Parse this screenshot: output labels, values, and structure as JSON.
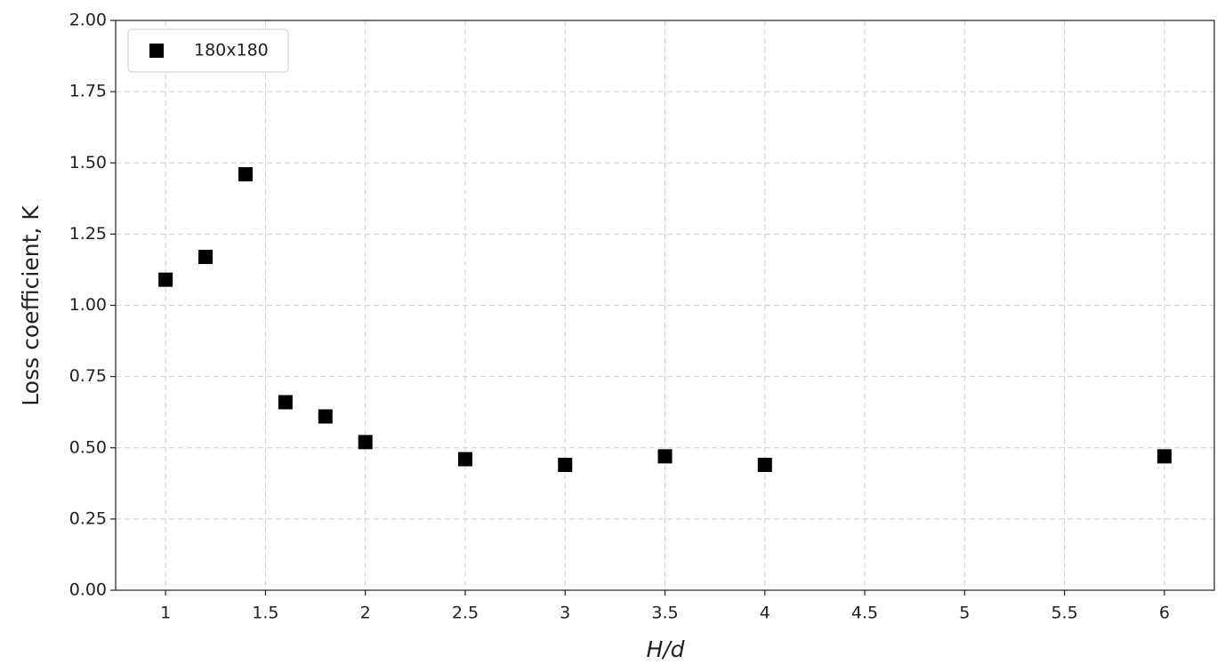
{
  "chart_data": {
    "type": "scatter",
    "xlabel": "H/d",
    "ylabel": "Loss coefficient, K",
    "series": [
      {
        "name": "180x180",
        "color": "#000000",
        "x": [
          1.0,
          1.2,
          1.4,
          1.6,
          1.8,
          2.0,
          2.5,
          3.0,
          3.5,
          4.0,
          6.0
        ],
        "values": [
          1.09,
          1.17,
          1.46,
          0.66,
          0.61,
          0.52,
          0.46,
          0.44,
          0.47,
          0.44,
          0.47
        ]
      }
    ],
    "xlim": [
      0.75,
      6.25
    ],
    "xticks": [
      1,
      1.5,
      2,
      2.5,
      3,
      3.5,
      4,
      4.5,
      5,
      5.5,
      6
    ],
    "ylim": [
      0,
      2
    ],
    "yticks": [
      {
        "value": 0,
        "label": "0.00"
      },
      {
        "value": 0.25,
        "label": "0.25"
      },
      {
        "value": 0.5,
        "label": "0.50"
      },
      {
        "value": 0.75,
        "label": "0.75"
      },
      {
        "value": 1,
        "label": "1.00"
      },
      {
        "value": 1.25,
        "label": "1.25"
      },
      {
        "value": 1.5,
        "label": "1.50"
      },
      {
        "value": 1.75,
        "label": "1.75"
      },
      {
        "value": 2,
        "label": "2.00"
      }
    ],
    "grid": true,
    "legend": "upper left"
  }
}
